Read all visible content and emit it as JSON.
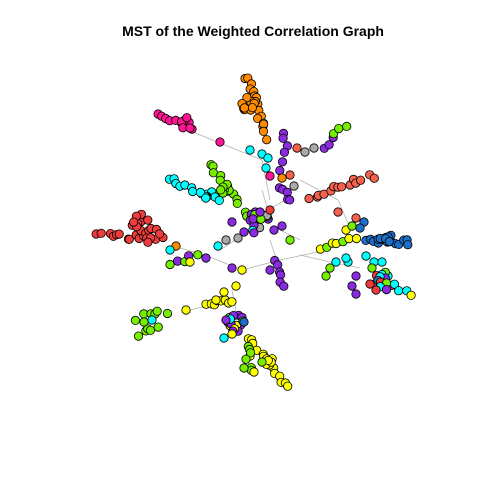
{
  "title": "MST of the Weighted Correlation Graph",
  "colors": {
    "background": "#ffffff",
    "edge": "#b3b3b3",
    "node_stroke": "#000000",
    "groups": {
      "orange": "#ff8c00",
      "magenta": "#ff1493",
      "salmon": "#f4624e",
      "red": "#ee3b3b",
      "cyan": "#00ffff",
      "green": "#76ee00",
      "purple": "#8a2be2",
      "gray": "#a9a9a9",
      "yellow": "#ffff00",
      "blue": "#1e6fc8"
    }
  }
}
